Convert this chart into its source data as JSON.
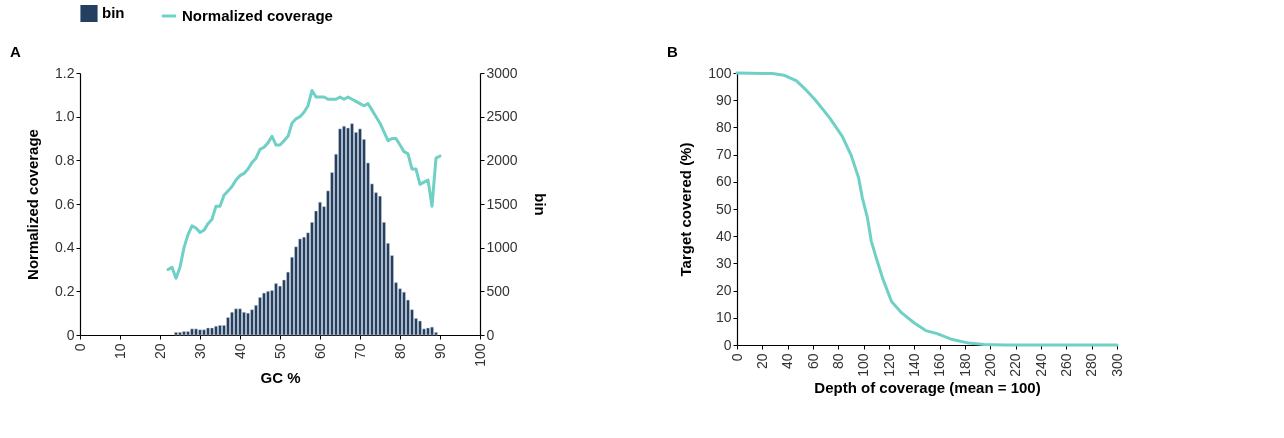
{
  "chart_data": [
    {
      "type": "bar",
      "title": "A",
      "xlabel": "GC %",
      "ylabel": "Normalized coverage",
      "y2label": "bin",
      "legend": "top",
      "xlim": [
        0,
        100
      ],
      "xticks": [
        0,
        10,
        20,
        30,
        40,
        50,
        60,
        70,
        80,
        90,
        100
      ],
      "ylim": [
        0,
        1.2
      ],
      "yticks": [
        0,
        0.2,
        0.4,
        0.6,
        0.8,
        {
          "value": 1,
          "label": "1.0"
        },
        1.2
      ],
      "y2lim": [
        0,
        3000
      ],
      "y2ticks": [
        0,
        500,
        1000,
        1500,
        2000,
        2500,
        3000
      ],
      "series": [
        {
          "name": "bin",
          "type": "bar",
          "axis": "y2",
          "color": "#243f60",
          "x": [
            24,
            25,
            26,
            27,
            28,
            29,
            30,
            31,
            32,
            33,
            34,
            35,
            36,
            37,
            38,
            39,
            40,
            41,
            42,
            43,
            44,
            45,
            46,
            47,
            48,
            49,
            50,
            51,
            52,
            53,
            54,
            55,
            56,
            57,
            58,
            59,
            60,
            61,
            62,
            63,
            64,
            65,
            66,
            67,
            68,
            69,
            70,
            71,
            72,
            73,
            74,
            75,
            76,
            77,
            78,
            79,
            80,
            81,
            82,
            83,
            84,
            85,
            86,
            87,
            88,
            89
          ],
          "values": [
            30,
            30,
            40,
            40,
            70,
            70,
            60,
            60,
            80,
            80,
            100,
            110,
            110,
            200,
            260,
            300,
            300,
            260,
            250,
            290,
            340,
            430,
            480,
            500,
            510,
            590,
            560,
            630,
            720,
            890,
            1010,
            1100,
            1120,
            1170,
            1290,
            1420,
            1520,
            1470,
            1650,
            1860,
            2070,
            2360,
            2390,
            2370,
            2420,
            2320,
            2360,
            2240,
            1970,
            1730,
            1630,
            1590,
            1290,
            1050,
            910,
            600,
            530,
            490,
            400,
            290,
            190,
            160,
            70,
            80,
            90,
            30
          ]
        },
        {
          "name": "Normalized coverage",
          "type": "line",
          "color": "#6fd0c5",
          "x": [
            22,
            23,
            24,
            25,
            26,
            27,
            28,
            29,
            30,
            31,
            32,
            33,
            34,
            35,
            36,
            37,
            38,
            39,
            40,
            41,
            42,
            43,
            44,
            45,
            46,
            47,
            48,
            49,
            50,
            51,
            52,
            53,
            54,
            55,
            56,
            57,
            58,
            59,
            60,
            61,
            62,
            63,
            64,
            65,
            66,
            67,
            68,
            69,
            70,
            71,
            72,
            73,
            74,
            75,
            76,
            77,
            78,
            79,
            80,
            81,
            82,
            83,
            84,
            85,
            86,
            87,
            88,
            89,
            90
          ],
          "values": [
            0.3,
            0.31,
            0.26,
            0.31,
            0.4,
            0.46,
            0.5,
            0.49,
            0.47,
            0.48,
            0.51,
            0.53,
            0.59,
            0.59,
            0.64,
            0.66,
            0.68,
            0.71,
            0.73,
            0.74,
            0.76,
            0.79,
            0.81,
            0.85,
            0.86,
            0.88,
            0.91,
            0.87,
            0.87,
            0.89,
            0.91,
            0.97,
            0.99,
            1.0,
            1.02,
            1.05,
            1.12,
            1.09,
            1.09,
            1.09,
            1.08,
            1.08,
            1.08,
            1.09,
            1.08,
            1.09,
            1.08,
            1.07,
            1.06,
            1.05,
            1.06,
            1.03,
            1.0,
            0.97,
            0.93,
            0.89,
            0.9,
            0.9,
            0.87,
            0.84,
            0.83,
            0.76,
            0.76,
            0.69,
            0.7,
            0.71,
            0.59,
            0.81,
            0.82
          ]
        }
      ]
    },
    {
      "type": "line",
      "title": "B",
      "xlabel": "Depth of coverage (mean = 100)",
      "ylabel": "Target covered (%)",
      "xlim": [
        0,
        300
      ],
      "xticks": [
        0,
        20,
        40,
        60,
        80,
        100,
        120,
        140,
        160,
        180,
        200,
        220,
        240,
        260,
        280,
        300
      ],
      "ylim": [
        0,
        100
      ],
      "yticks": [
        0,
        10,
        20,
        30,
        40,
        50,
        60,
        70,
        80,
        90,
        100
      ],
      "color": "#6fd0c5",
      "x": [
        0,
        28,
        37,
        47,
        54,
        62,
        73,
        83,
        90,
        96,
        99,
        103,
        106,
        110,
        115,
        122,
        130,
        140,
        149,
        158,
        170,
        183,
        195,
        212,
        300
      ],
      "values": [
        100,
        99.8,
        99.2,
        97.1,
        94,
        90,
        83.6,
        76.8,
        69.9,
        61.5,
        54,
        46.7,
        38.2,
        31.9,
        24.5,
        16,
        11.8,
        8.1,
        5.3,
        4.2,
        2,
        0.7,
        0.2,
        0,
        0
      ]
    }
  ]
}
